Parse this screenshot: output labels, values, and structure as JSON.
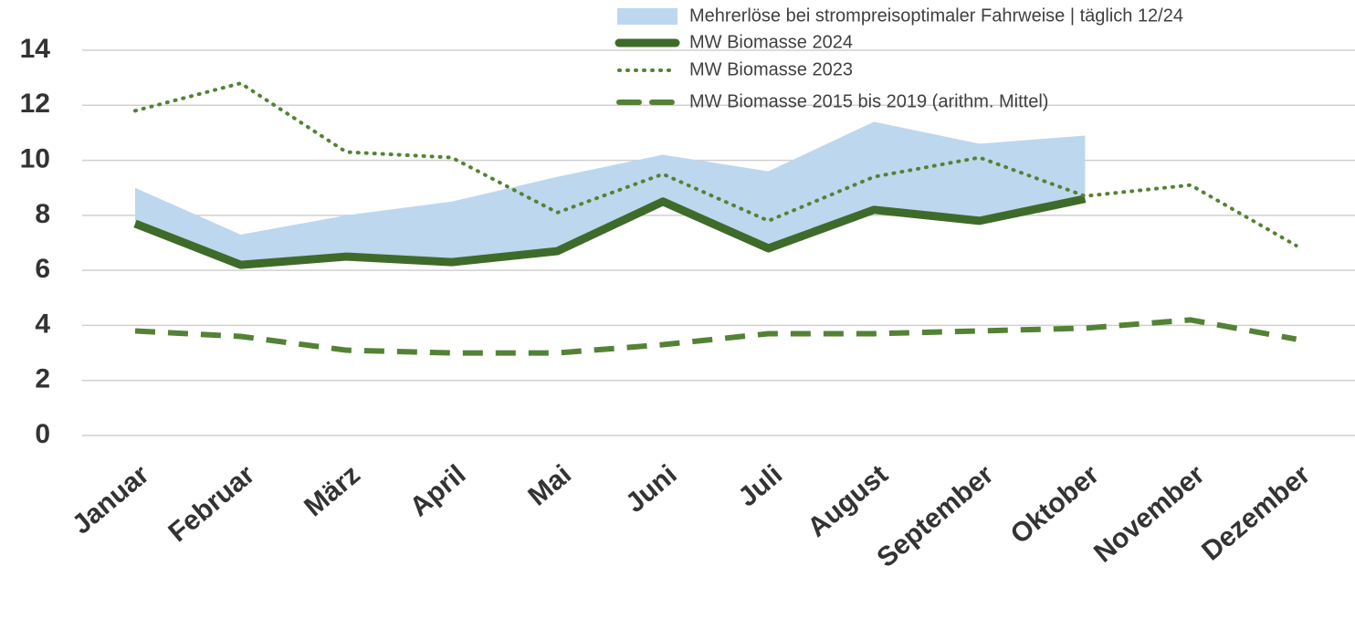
{
  "chart_data": {
    "type": "line",
    "categories": [
      "Januar",
      "Februar",
      "März",
      "April",
      "Mai",
      "Juni",
      "Juli",
      "August",
      "September",
      "Oktober",
      "November",
      "Dezember"
    ],
    "series": [
      {
        "name": "Mehrerlöse bei strompreisoptimaler Fahrweise | täglich 12/24",
        "color": "#bdd7ee",
        "style": "area",
        "values": [
          1.3,
          1.1,
          1.5,
          2.2,
          2.7,
          1.7,
          2.8,
          3.2,
          2.8,
          2.3,
          null,
          null
        ]
      },
      {
        "name": "MW Biomasse 2024",
        "color": "#3e6b2a",
        "style": "solid",
        "values": [
          7.7,
          6.2,
          6.5,
          6.3,
          6.7,
          8.5,
          6.8,
          8.2,
          7.8,
          8.6,
          null,
          null
        ]
      },
      {
        "name": "MW Biomasse 2023",
        "color": "#548235",
        "style": "dotted",
        "values": [
          11.8,
          12.8,
          10.3,
          10.1,
          8.1,
          9.5,
          7.8,
          9.4,
          10.1,
          8.7,
          9.1,
          6.9
        ]
      },
      {
        "name": "MW Biomasse 2015 bis 2019 (arithm. Mittel)",
        "color": "#548235",
        "style": "dashed",
        "values": [
          3.8,
          3.6,
          3.1,
          3.0,
          3.0,
          3.3,
          3.7,
          3.7,
          3.8,
          3.9,
          4.2,
          3.5
        ]
      }
    ],
    "ylim": [
      0,
      14
    ],
    "yticks": [
      0,
      2,
      4,
      6,
      8,
      10,
      12,
      14
    ],
    "grid": true,
    "legend": "top-right"
  }
}
